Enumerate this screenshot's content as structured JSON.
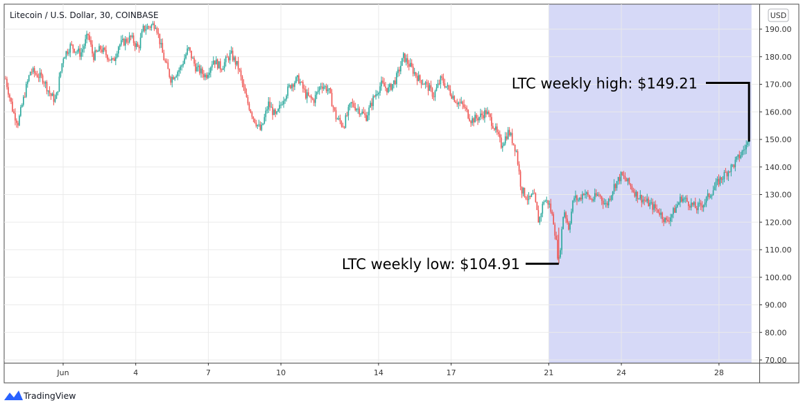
{
  "chart_data": {
    "type": "candlestick",
    "title": "Litecoin / U.S. Dollar, 30, COINBASE",
    "currency_label": "USD",
    "interval_minutes": 30,
    "x_tick_labels": [
      "Jun",
      "4",
      "7",
      "10",
      "14",
      "17",
      "21",
      "24",
      "28"
    ],
    "y_tick_labels": [
      "70.00",
      "80.00",
      "90.00",
      "100.00",
      "110.00",
      "120.00",
      "130.00",
      "140.00",
      "150.00",
      "160.00",
      "170.00",
      "180.00",
      "190.00"
    ],
    "ylim": [
      68,
      195
    ],
    "grid": true,
    "highlight_range": {
      "from_day": 21.7,
      "to_day": 29.8
    },
    "price_path": [
      [
        0.0,
        172
      ],
      [
        0.3,
        160
      ],
      [
        0.5,
        156
      ],
      [
        0.8,
        168
      ],
      [
        1.0,
        175
      ],
      [
        1.5,
        172
      ],
      [
        1.8,
        166
      ],
      [
        2.0,
        164
      ],
      [
        2.3,
        180
      ],
      [
        2.6,
        184
      ],
      [
        3.0,
        181
      ],
      [
        3.3,
        188
      ],
      [
        3.5,
        180
      ],
      [
        3.8,
        183
      ],
      [
        4.3,
        178
      ],
      [
        4.5,
        184
      ],
      [
        5.0,
        187
      ],
      [
        5.3,
        183
      ],
      [
        5.5,
        190
      ],
      [
        6.0,
        192
      ],
      [
        6.3,
        180
      ],
      [
        6.6,
        172
      ],
      [
        7.0,
        176
      ],
      [
        7.3,
        183
      ],
      [
        7.6,
        176
      ],
      [
        8.0,
        173
      ],
      [
        8.3,
        179
      ],
      [
        8.6,
        176
      ],
      [
        9.0,
        181
      ],
      [
        9.3,
        176
      ],
      [
        9.6,
        165
      ],
      [
        9.9,
        158
      ],
      [
        10.2,
        153
      ],
      [
        10.5,
        163
      ],
      [
        10.8,
        158
      ],
      [
        11.1,
        165
      ],
      [
        11.4,
        170
      ],
      [
        11.7,
        172
      ],
      [
        12.0,
        166
      ],
      [
        12.3,
        164
      ],
      [
        12.6,
        170
      ],
      [
        12.9,
        168
      ],
      [
        13.2,
        158
      ],
      [
        13.5,
        155
      ],
      [
        13.8,
        163
      ],
      [
        14.1,
        161
      ],
      [
        14.4,
        158
      ],
      [
        14.7,
        165
      ],
      [
        15.0,
        170
      ],
      [
        15.3,
        168
      ],
      [
        15.6,
        172
      ],
      [
        15.9,
        180
      ],
      [
        16.2,
        176
      ],
      [
        16.5,
        172
      ],
      [
        16.8,
        170
      ],
      [
        17.1,
        166
      ],
      [
        17.4,
        172
      ],
      [
        17.7,
        168
      ],
      [
        18.0,
        164
      ],
      [
        18.3,
        162
      ],
      [
        18.6,
        157
      ],
      [
        18.9,
        158
      ],
      [
        19.2,
        160
      ],
      [
        19.5,
        155
      ],
      [
        19.8,
        148
      ],
      [
        20.1,
        153
      ],
      [
        20.4,
        146
      ],
      [
        20.6,
        132
      ],
      [
        20.9,
        128
      ],
      [
        21.1,
        130
      ],
      [
        21.3,
        120
      ],
      [
        21.5,
        128
      ],
      [
        21.7,
        127
      ],
      [
        21.9,
        120
      ],
      [
        22.1,
        104.91
      ],
      [
        22.3,
        125
      ],
      [
        22.5,
        118
      ],
      [
        22.7,
        129
      ],
      [
        22.9,
        128
      ],
      [
        23.1,
        131
      ],
      [
        23.4,
        128
      ],
      [
        23.7,
        130
      ],
      [
        24.0,
        126
      ],
      [
        24.3,
        133
      ],
      [
        24.6,
        137
      ],
      [
        24.9,
        134
      ],
      [
        25.2,
        130
      ],
      [
        25.5,
        128
      ],
      [
        25.8,
        126
      ],
      [
        26.1,
        124
      ],
      [
        26.4,
        120
      ],
      [
        26.7,
        124
      ],
      [
        27.0,
        129
      ],
      [
        27.3,
        127
      ],
      [
        27.6,
        125
      ],
      [
        27.9,
        127
      ],
      [
        28.2,
        131
      ],
      [
        28.5,
        135
      ],
      [
        28.8,
        138
      ],
      [
        29.1,
        141
      ],
      [
        29.4,
        145
      ],
      [
        29.7,
        149.21
      ]
    ],
    "annotations": [
      {
        "text": "LTC weekly high: $149.21",
        "value": 149.21,
        "day": 29.7
      },
      {
        "text": "LTC weekly low: $104.91",
        "value": 104.91,
        "day": 22.1
      }
    ],
    "colors": {
      "up": "#26a69a",
      "down": "#ef5350",
      "highlight": "#d6d9f7",
      "grid": "#eaeaea",
      "axis": "#333333"
    }
  },
  "branding": {
    "name": "TradingView"
  }
}
